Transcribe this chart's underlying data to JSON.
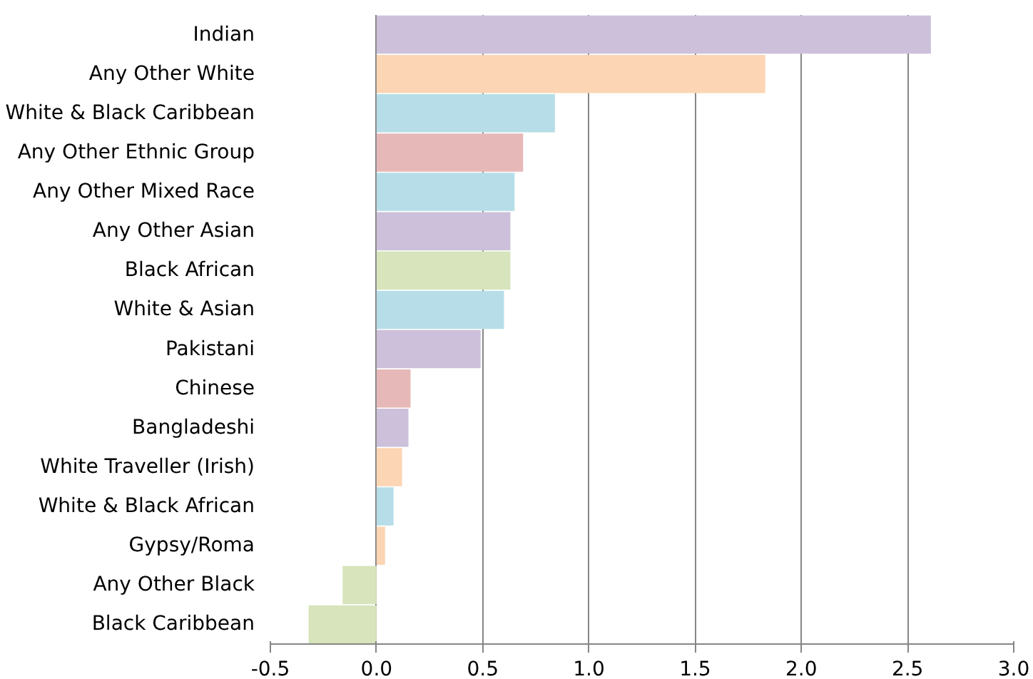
{
  "chart_data": {
    "type": "bar",
    "orientation": "horizontal",
    "categories": [
      "Indian",
      "Any Other White",
      "White & Black Caribbean",
      "Any Other Ethnic Group",
      "Any Other Mixed Race",
      "Any Other Asian",
      "Black African",
      "White & Asian",
      "Pakistani",
      "Chinese",
      "Bangladeshi",
      "White Traveller (Irish)",
      "White & Black African",
      "Gypsy/Roma",
      "Any Other Black",
      "Black Caribbean"
    ],
    "values": [
      2.61,
      1.83,
      0.84,
      0.69,
      0.65,
      0.63,
      0.63,
      0.6,
      0.49,
      0.16,
      0.15,
      0.12,
      0.08,
      0.04,
      -0.16,
      -0.32
    ],
    "colors": [
      "#ccc0da",
      "#fcd5b4",
      "#b7dee8",
      "#e6b9b8",
      "#b7dee8",
      "#ccc0da",
      "#d7e4bc",
      "#b7dee8",
      "#ccc0da",
      "#e6b9b8",
      "#ccc0da",
      "#fcd5b4",
      "#b7dee8",
      "#fcd5b4",
      "#d7e4bc",
      "#d7e4bc"
    ],
    "xlim": [
      -0.5,
      3.0
    ],
    "xticks": [
      {
        "value": -0.5,
        "label": "-0.5"
      },
      {
        "value": 0,
        "label": "0.0"
      },
      {
        "value": 0.5,
        "label": "0.5"
      },
      {
        "value": 1.0,
        "label": "1.0"
      },
      {
        "value": 1.5,
        "label": "1.5"
      },
      {
        "value": 2.0,
        "label": "2.0"
      },
      {
        "value": 2.5,
        "label": "2.5"
      },
      {
        "value": 3.0,
        "label": "3.0"
      }
    ],
    "grid": "x"
  }
}
